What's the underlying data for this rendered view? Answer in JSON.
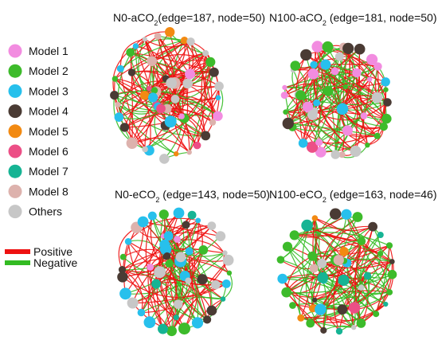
{
  "legend": {
    "modules": [
      {
        "label": "Model 1",
        "color": "#f28ce0"
      },
      {
        "label": "Model 2",
        "color": "#3dbb2b"
      },
      {
        "label": "Model 3",
        "color": "#27c0ec"
      },
      {
        "label": "Model 4",
        "color": "#4a3b34"
      },
      {
        "label": "Model 5",
        "color": "#f28a12"
      },
      {
        "label": "Model 6",
        "color": "#ec4f86"
      },
      {
        "label": "Model 7",
        "color": "#16b494"
      },
      {
        "label": "Model 8",
        "color": "#ddb2ad"
      },
      {
        "label": "Others",
        "color": "#c7c7c7"
      }
    ],
    "edges": [
      {
        "label": "Positive",
        "color": "#ee1111"
      },
      {
        "label": "Negative",
        "color": "#33bb22"
      }
    ]
  },
  "networks": [
    {
      "title": "N0-aCO",
      "title_sub": "2",
      "title_suffix": "(edge=187, node=50)",
      "edges": 187,
      "nodes": 50,
      "legend_modules": [
        "Model 1",
        "Model 2",
        "Model 3",
        "Model 4",
        "Model 5",
        "Model 6",
        "Model 7",
        "Model 8",
        "Others"
      ]
    },
    {
      "title": "N100-aCO",
      "title_sub": "2",
      "title_suffix": " (edge=181, node=50)",
      "edges": 181,
      "nodes": 50
    },
    {
      "title": "N0-eCO",
      "title_sub": "2",
      "title_suffix": " (edge=143, node=50)",
      "edges": 143,
      "nodes": 50
    },
    {
      "title": "N100-eCO",
      "title_sub": "2",
      "title_suffix": " (edge=163, node=46)",
      "edges": 163,
      "nodes": 46
    }
  ]
}
